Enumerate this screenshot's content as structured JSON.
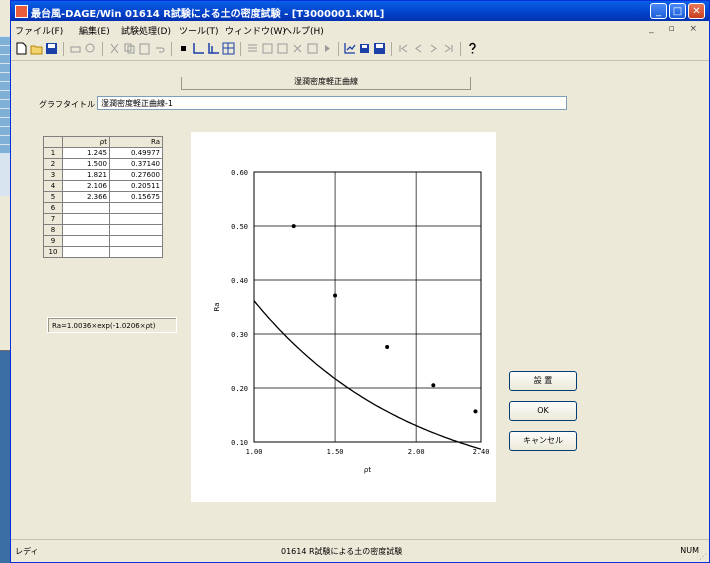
{
  "window": {
    "title": "最台風-DAGE/Win 01614 R試験による土の密度試験 - [T3000001.KML]",
    "controls": {
      "minimize": "_",
      "maximize": "□",
      "close": "✕"
    }
  },
  "menubar": {
    "items": [
      "ファイル(F)",
      "編集(E)",
      "試験処理(D)",
      "ツール(T)",
      "ウィンドウ(W)",
      "ヘルプ(H)"
    ],
    "doc_controls": "_ ▫ ×"
  },
  "content": {
    "section_header": "湿潤密度軽正曲線",
    "graph_title_label": "グラフタイトル",
    "graph_title_value": "湿潤密度軽正曲線-1"
  },
  "table": {
    "headers": [
      "",
      "ρt",
      "Ra"
    ],
    "rows": [
      [
        "1",
        "1.245",
        "0.49977"
      ],
      [
        "2",
        "1.500",
        "0.37140"
      ],
      [
        "3",
        "1.821",
        "0.27600"
      ],
      [
        "4",
        "2.106",
        "0.20511"
      ],
      [
        "5",
        "2.366",
        "0.15675"
      ],
      [
        "6",
        "",
        ""
      ],
      [
        "7",
        "",
        ""
      ],
      [
        "8",
        "",
        ""
      ],
      [
        "9",
        "",
        ""
      ],
      [
        "10",
        "",
        ""
      ]
    ]
  },
  "formula": "Ra=1.0036×exp(-1.0206×ρt)",
  "buttons": {
    "settings": "設 置",
    "ok": "OK",
    "cancel": "キャンセル"
  },
  "statusbar": {
    "left": "レディ",
    "center": "01614 R試験による土の密度試験",
    "right": "NUM"
  },
  "chart_data": {
    "type": "line",
    "xlabel": "ρt",
    "ylabel": "Ra",
    "xlim": [
      1.0,
      2.4
    ],
    "ylim": [
      0.1,
      0.6
    ],
    "x_ticks": [
      "1.00",
      "1.50",
      "2.00",
      "2.40"
    ],
    "y_ticks": [
      "0.10",
      "0.20",
      "0.30",
      "0.40",
      "0.50",
      "0.60"
    ],
    "grid": true,
    "curve": {
      "a": 1.0036,
      "b": -1.0206
    },
    "points": [
      {
        "x": 1.245,
        "y": 0.49977
      },
      {
        "x": 1.5,
        "y": 0.3714
      },
      {
        "x": 1.821,
        "y": 0.276
      },
      {
        "x": 2.106,
        "y": 0.20511
      },
      {
        "x": 2.366,
        "y": 0.15675
      }
    ],
    "line_color": "#000000",
    "marker_color": "#000000"
  }
}
